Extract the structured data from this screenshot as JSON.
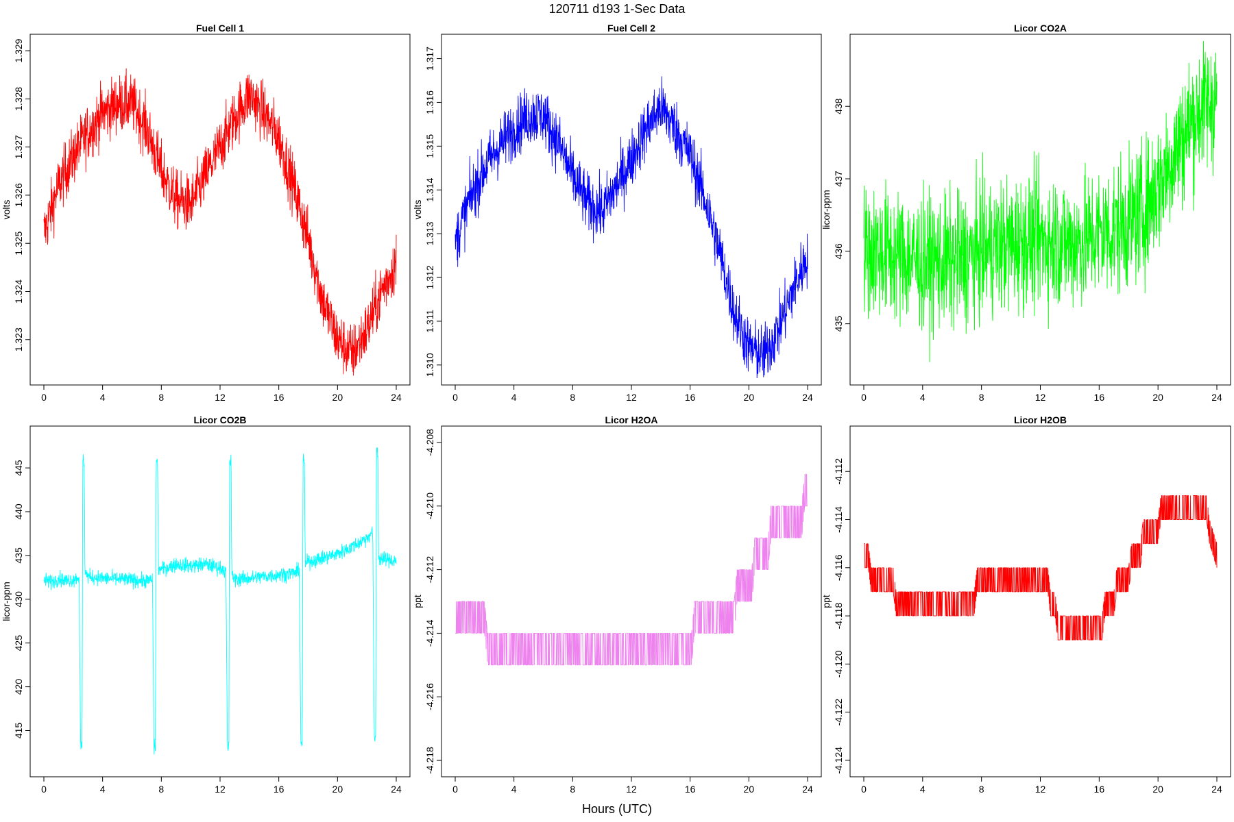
{
  "page_title": "120711   d193   1-Sec Data",
  "x_label": "Hours (UTC)",
  "chart_data": [
    {
      "type": "line",
      "title": "Fuel Cell 1",
      "ylabel": "volts",
      "color": "#ff0000",
      "xlim": [
        0,
        24
      ],
      "ylim": [
        1.3222,
        1.3292
      ],
      "x_ticks": [
        "0",
        "4",
        "8",
        "12",
        "16",
        "20",
        "24"
      ],
      "y_ticks": [
        "1.323",
        "1.324",
        "1.325",
        "1.326",
        "1.327",
        "1.328",
        "1.329"
      ],
      "x": [
        0,
        1,
        2,
        3,
        4,
        5,
        6,
        7,
        8,
        9,
        10,
        11,
        12,
        13,
        14,
        15,
        16,
        17,
        18,
        19,
        20,
        21,
        22,
        23,
        24
      ],
      "values": [
        1.3252,
        1.3262,
        1.3268,
        1.3273,
        1.3277,
        1.3279,
        1.3279,
        1.3274,
        1.3265,
        1.3259,
        1.3258,
        1.3264,
        1.327,
        1.3276,
        1.3281,
        1.3277,
        1.3272,
        1.3262,
        1.3251,
        1.3238,
        1.323,
        1.3227,
        1.3232,
        1.324,
        1.3246
      ],
      "noise": 0.00085
    },
    {
      "type": "line",
      "title": "Fuel Cell 2",
      "ylabel": "volts",
      "color": "#0000ff",
      "xlim": [
        0,
        24
      ],
      "ylim": [
        1.3097,
        1.3174
      ],
      "x_ticks": [
        "0",
        "4",
        "8",
        "12",
        "16",
        "20",
        "24"
      ],
      "y_ticks": [
        "1.310",
        "1.311",
        "1.312",
        "1.313",
        "1.314",
        "1.315",
        "1.316",
        "1.317"
      ],
      "x": [
        0,
        1,
        2,
        3,
        4,
        5,
        6,
        7,
        8,
        9,
        10,
        11,
        12,
        13,
        14,
        15,
        16,
        17,
        18,
        19,
        20,
        21,
        22,
        23,
        24
      ],
      "values": [
        1.3128,
        1.3138,
        1.3145,
        1.315,
        1.3154,
        1.3157,
        1.3157,
        1.3151,
        1.3143,
        1.3137,
        1.3135,
        1.3141,
        1.3147,
        1.3154,
        1.3159,
        1.3154,
        1.3148,
        1.3138,
        1.3126,
        1.3112,
        1.3104,
        1.3102,
        1.3108,
        1.3117,
        1.3125
      ],
      "noise": 0.00095
    },
    {
      "type": "line",
      "title": "Licor CO2A",
      "ylabel": "licor-ppm",
      "color": "#00ff00",
      "xlim": [
        0,
        24
      ],
      "ylim": [
        434.25,
        438.9
      ],
      "x_ticks": [
        "0",
        "4",
        "8",
        "12",
        "16",
        "20",
        "24"
      ],
      "y_ticks": [
        "435",
        "436",
        "437",
        "438"
      ],
      "x": [
        0,
        1,
        2,
        3,
        4,
        5,
        6,
        7,
        8,
        9,
        10,
        11,
        12,
        13,
        14,
        15,
        16,
        17,
        18,
        19,
        20,
        21,
        22,
        23,
        24
      ],
      "values": [
        436.0,
        436.0,
        435.95,
        435.9,
        435.85,
        435.85,
        435.85,
        435.9,
        436.0,
        436.05,
        436.1,
        436.15,
        436.15,
        436.15,
        436.1,
        436.15,
        436.25,
        436.3,
        436.4,
        436.55,
        436.9,
        437.3,
        437.7,
        438.0,
        438.1
      ],
      "noise": 1.3
    },
    {
      "type": "line",
      "title": "Licor CO2B",
      "ylabel": "licor-ppm",
      "color": "#00ffff",
      "xlim": [
        0,
        24
      ],
      "ylim": [
        410.5,
        449.0
      ],
      "x_ticks": [
        "0",
        "4",
        "8",
        "12",
        "16",
        "20",
        "24"
      ],
      "y_ticks": [
        "415",
        "420",
        "425",
        "430",
        "435",
        "440",
        "445"
      ],
      "x": [
        0,
        0.5,
        1.0,
        1.5,
        2.0,
        2.4,
        2.5,
        2.6,
        2.65,
        2.75,
        2.8,
        3.0,
        3.5,
        4.0,
        5.0,
        6.0,
        7.0,
        7.4,
        7.5,
        7.6,
        7.65,
        7.75,
        7.8,
        8.0,
        9.0,
        10.0,
        11.0,
        12.2,
        12.4,
        12.5,
        12.6,
        12.65,
        12.75,
        12.8,
        13.0,
        14.0,
        15.0,
        16.0,
        17.0,
        17.4,
        17.5,
        17.6,
        17.65,
        17.75,
        17.8,
        18.0,
        19.0,
        20.0,
        21.0,
        22.0,
        22.4,
        22.5,
        22.6,
        22.65,
        22.75,
        22.8,
        23.0,
        24.0
      ],
      "values": [
        432.2,
        432.0,
        432.4,
        432.1,
        432.3,
        432.5,
        413.0,
        413.2,
        445.8,
        445.6,
        433.2,
        432.6,
        432.5,
        432.4,
        432.3,
        432.2,
        432.1,
        432.2,
        413.0,
        413.2,
        445.7,
        445.5,
        433.5,
        433.4,
        434.0,
        433.8,
        434.0,
        433.5,
        433.0,
        413.0,
        413.2,
        445.8,
        445.6,
        432.6,
        432.3,
        432.4,
        432.6,
        432.8,
        433.0,
        433.2,
        413.5,
        413.8,
        445.8,
        445.6,
        434.0,
        434.3,
        434.7,
        435.2,
        436.0,
        437.0,
        437.8,
        414.0,
        414.3,
        447.0,
        446.8,
        434.8,
        434.6,
        434.4
      ],
      "noise": 1.2
    },
    {
      "type": "line",
      "title": "Licor H2OA",
      "ylabel": "ppt",
      "color": "#ee82ee",
      "xlim": [
        0,
        24
      ],
      "ylim": [
        -4.2183,
        -4.2077
      ],
      "x_ticks": [
        "0",
        "4",
        "8",
        "12",
        "16",
        "20",
        "24"
      ],
      "y_ticks": [
        "-4.218",
        "-4.216",
        "-4.214",
        "-4.212",
        "-4.210",
        "-4.208"
      ],
      "x": [
        0,
        2,
        2.2,
        16.1,
        16.3,
        19.0,
        19.2,
        20.2,
        20.4,
        21.3,
        21.5,
        23.6,
        23.8,
        24.0
      ],
      "values": [
        -4.2135,
        -4.2135,
        -4.2145,
        -4.2145,
        -4.2135,
        -4.2135,
        -4.2125,
        -4.2125,
        -4.2115,
        -4.2115,
        -4.2105,
        -4.2105,
        -4.2095,
        -4.2095
      ],
      "step": 0.001
    },
    {
      "type": "line",
      "title": "Licor H2OB",
      "ylabel": "ppt",
      "color": "#ff0000",
      "xlim": [
        0,
        24
      ],
      "ylim": [
        -4.1244,
        -4.1104
      ],
      "x_ticks": [
        "0",
        "4",
        "8",
        "12",
        "16",
        "20",
        "24"
      ],
      "y_ticks": [
        "-4.124",
        "-4.122",
        "-4.120",
        "-4.118",
        "-4.116",
        "-4.114",
        "-4.112"
      ],
      "x": [
        0,
        0.3,
        0.5,
        2.0,
        2.2,
        7.5,
        7.7,
        12.5,
        12.7,
        13.0,
        13.2,
        16.2,
        16.4,
        17.0,
        17.2,
        18.0,
        18.2,
        18.8,
        19.0,
        20.0,
        20.2,
        23.3,
        23.5,
        24.0
      ],
      "values": [
        -4.1155,
        -4.1155,
        -4.1165,
        -4.1165,
        -4.1175,
        -4.1175,
        -4.1165,
        -4.1165,
        -4.1175,
        -4.1175,
        -4.1185,
        -4.1185,
        -4.1175,
        -4.1175,
        -4.1165,
        -4.1165,
        -4.1155,
        -4.1155,
        -4.1145,
        -4.1145,
        -4.1135,
        -4.1135,
        -4.1145,
        -4.1155
      ],
      "step": 0.001
    }
  ]
}
